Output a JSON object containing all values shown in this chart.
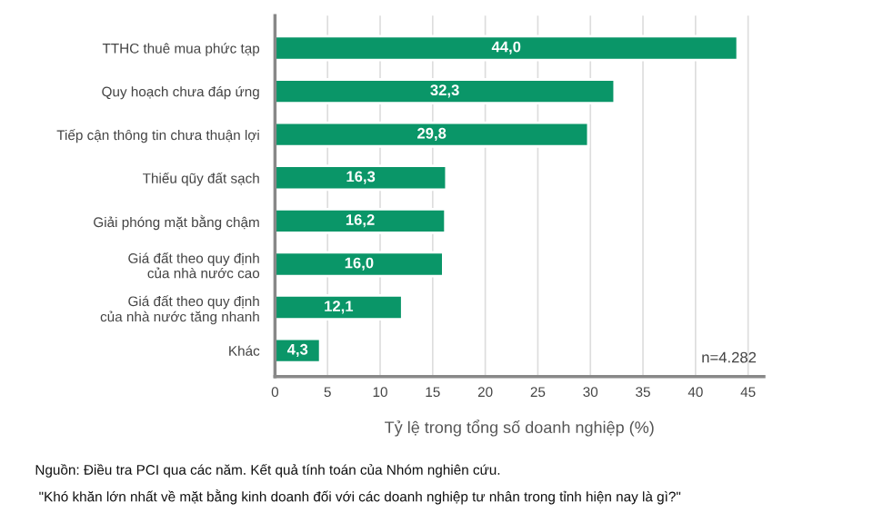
{
  "chart_data": {
    "type": "bar",
    "orientation": "horizontal",
    "categories": [
      "TTHC thuê mua phức tạp",
      "Quy hoạch chưa đáp ứng",
      "Tiếp cận thông tin chưa thuận lợi",
      "Thiếu qũy đất sạch",
      "Giải phóng mặt bằng chậm",
      "Giá đất theo quy định\ncủa nhà nước cao",
      "Giá đất theo quy định\ncủa nhà nước tăng nhanh",
      "Khác"
    ],
    "values": [
      44.0,
      32.3,
      29.8,
      16.3,
      16.2,
      16.0,
      12.1,
      4.3
    ],
    "value_labels": [
      "44,0",
      "32,3",
      "29,8",
      "16,3",
      "16,2",
      "16,0",
      "12,1",
      "4,3"
    ],
    "color": "#0a9668",
    "xlabel": "Tỷ lệ trong tổng số doanh nghiệp (%)",
    "xlim": [
      0,
      46.5
    ],
    "xticks": [
      0,
      5,
      10,
      15,
      20,
      25,
      30,
      35,
      40,
      45
    ],
    "grid": "x",
    "legend": false,
    "annotations": [
      "n=4.282",
      "Nguồn: Điều tra PCI qua các năm. Kết quả tính toán của Nhóm nghiên cứu.",
      " \"Khó khăn lớn nhất về mặt bằng kinh doanh đối với các doanh nghiệp tư nhân trong tỉnh hiện nay là gì?\""
    ]
  }
}
